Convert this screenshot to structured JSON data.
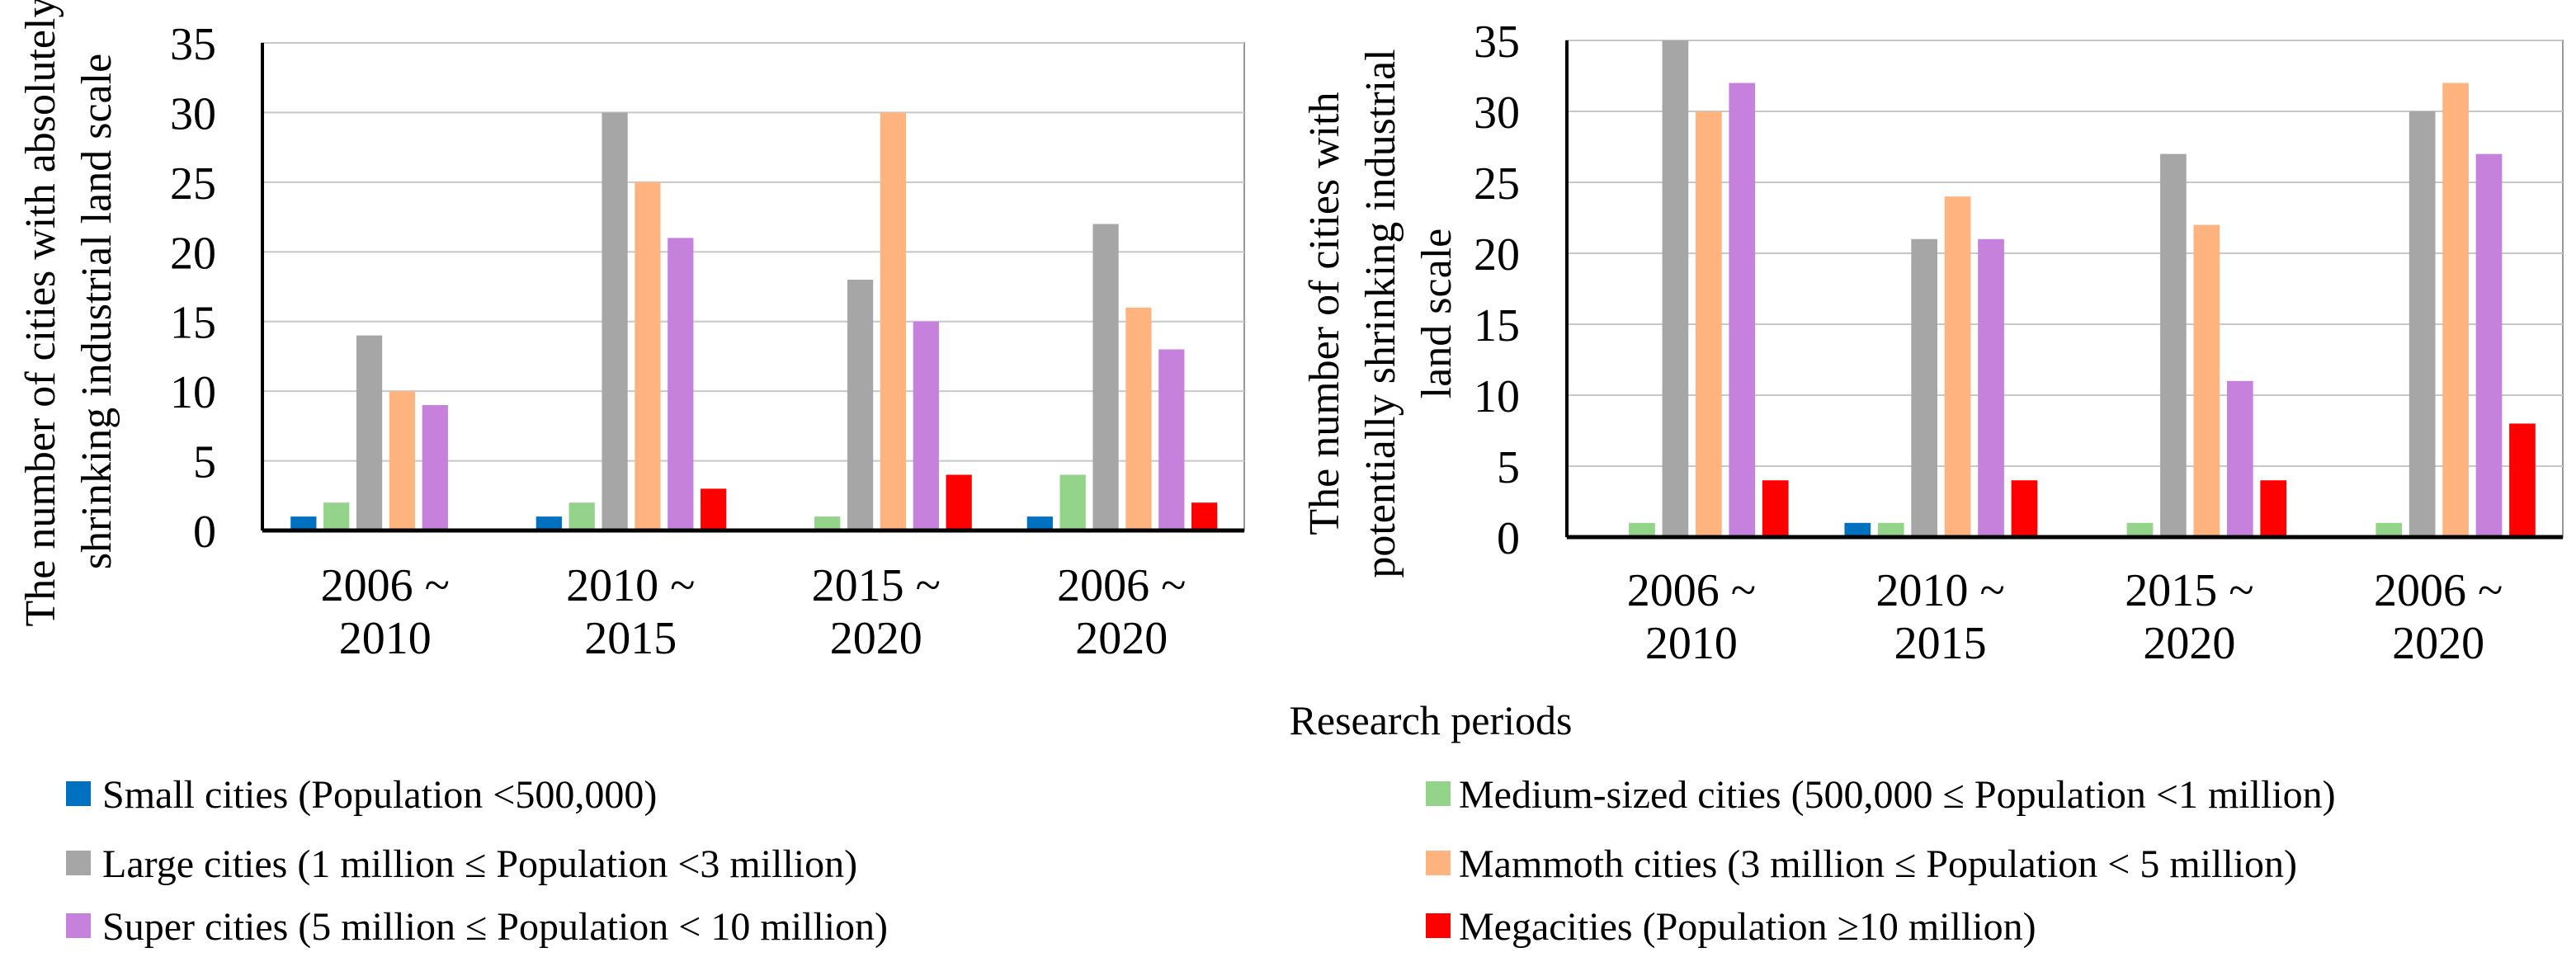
{
  "chart_data": [
    {
      "type": "bar",
      "title": "",
      "xlabel": "",
      "ylabel_lines": [
        "The number of cities with absolutely",
        "shrinking industrial land scale"
      ],
      "ylim": [
        0,
        35
      ],
      "yticks": [
        "0",
        "5",
        "10",
        "15",
        "20",
        "25",
        "30",
        "35"
      ],
      "grid": true,
      "categories": [
        [
          "2006 ~",
          "2010"
        ],
        [
          "2010 ~",
          "2015"
        ],
        [
          "2015 ~",
          "2020"
        ],
        [
          "2006 ~",
          "2020"
        ]
      ],
      "series": [
        {
          "name": "Small cities",
          "values": [
            1,
            1,
            0,
            1
          ]
        },
        {
          "name": "Medium-sized cities",
          "values": [
            2,
            2,
            1,
            4
          ]
        },
        {
          "name": "Large cities",
          "values": [
            14,
            30,
            18,
            22
          ]
        },
        {
          "name": "Mammoth cities",
          "values": [
            10,
            25,
            30,
            16
          ]
        },
        {
          "name": "Super cities",
          "values": [
            9,
            21,
            15,
            13
          ]
        },
        {
          "name": "Megacities",
          "values": [
            0,
            3,
            4,
            2
          ]
        }
      ]
    },
    {
      "type": "bar",
      "title": "",
      "xlabel": "",
      "ylabel_lines": [
        "The number of cities with",
        "potentially shrinking industrial",
        "land scale"
      ],
      "ylim": [
        0,
        35
      ],
      "yticks": [
        "0",
        "5",
        "10",
        "15",
        "20",
        "25",
        "30",
        "35"
      ],
      "grid": true,
      "categories": [
        [
          "2006 ~",
          "2010"
        ],
        [
          "2010 ~",
          "2015"
        ],
        [
          "2015 ~",
          "2020"
        ],
        [
          "2006 ~",
          "2020"
        ]
      ],
      "series": [
        {
          "name": "Small cities",
          "values": [
            0,
            1,
            0,
            0
          ]
        },
        {
          "name": "Medium-sized cities",
          "values": [
            1,
            1,
            1,
            1
          ]
        },
        {
          "name": "Large cities",
          "values": [
            35,
            21,
            27,
            30
          ]
        },
        {
          "name": "Mammoth cities",
          "values": [
            30,
            24,
            22,
            32
          ]
        },
        {
          "name": "Super cities",
          "values": [
            32,
            21,
            11,
            27
          ]
        },
        {
          "name": "Megacities",
          "values": [
            4,
            4,
            4,
            8
          ]
        }
      ]
    }
  ],
  "shared_xlabel": "Research periods",
  "legend": {
    "placement": "bottom",
    "items": [
      {
        "label": "Small cities (Population <500,000)",
        "color": "#0070c0"
      },
      {
        "label": "Medium-sized cities (500,000 ≤ Population <1 million)",
        "color": "#94d38a"
      },
      {
        "label": "Large cities (1 million ≤ Population <3 million)",
        "color": "#a6a6a6"
      },
      {
        "label": "Mammoth cities (3 million ≤ Population < 5 million)",
        "color": "#ffb480"
      },
      {
        "label": "Super cities (5 million ≤ Population < 10 million)",
        "color": "#c581db"
      },
      {
        "label": "Megacities (Population ≥10 million)",
        "color": "#ff0000"
      }
    ]
  }
}
